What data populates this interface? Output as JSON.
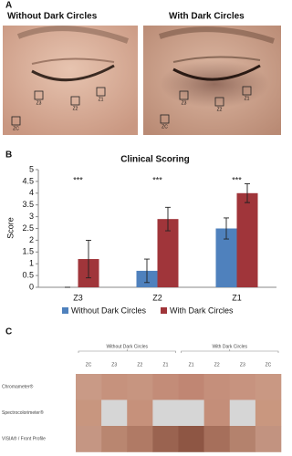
{
  "panels": [
    "A",
    "B",
    "C"
  ],
  "photos": {
    "left_title": "Without Dark Circles",
    "right_title": "With Dark Circles",
    "left_zones": [
      "Z3",
      "Z2",
      "Z1",
      "ZC"
    ],
    "right_zones": [
      "Z3",
      "Z2",
      "Z1",
      "ZC"
    ]
  },
  "chart_data": {
    "type": "bar",
    "title": "Clinical Scoring",
    "ylabel": "Score",
    "categories": [
      "Z3",
      "Z2",
      "Z1"
    ],
    "series": [
      {
        "name": "Without Dark Circles",
        "color": "#4f81bd",
        "values": [
          0,
          0.7,
          2.5
        ],
        "errors": [
          0,
          0.5,
          0.45
        ]
      },
      {
        "name": "With Dark Circles",
        "color": "#a0353a",
        "values": [
          1.2,
          2.9,
          4.0
        ],
        "errors": [
          0.8,
          0.5,
          0.4
        ]
      }
    ],
    "annotations": [
      "***",
      "***",
      "***"
    ],
    "ylim": [
      0,
      5
    ],
    "yticks": [
      0,
      0.5,
      1,
      1.5,
      2,
      2.5,
      3,
      3.5,
      4,
      4.5,
      5
    ],
    "grid": false,
    "legend": "bottom"
  },
  "color_table": {
    "groups": [
      "Without Dark Circles",
      "With Dark Circles"
    ],
    "columns": [
      "ZC",
      "Z3",
      "Z2",
      "Z1",
      "Z1",
      "Z2",
      "Z3",
      "ZC"
    ],
    "rows": [
      {
        "label": "Chromameter®",
        "colors": [
          "#c99a86",
          "#c6927d",
          "#c79580",
          "#c38c78",
          "#c08673",
          "#c58f7b",
          "#c7937f",
          "#c99883"
        ]
      },
      {
        "label": "Spectrocolorimeter®",
        "colors": [
          "#c8967f",
          "#d6d6d6",
          "#c6917b",
          "#d6d6d6",
          "#d6d6d6",
          "#c48e79",
          "#d6d6d6",
          "#c9977f"
        ]
      },
      {
        "label": "VISIA® / Front Profile",
        "colors": [
          "#c59683",
          "#b98670",
          "#b07a65",
          "#9a6350",
          "#8e5644",
          "#a66f5b",
          "#b4826d",
          "#c29380"
        ]
      }
    ]
  }
}
